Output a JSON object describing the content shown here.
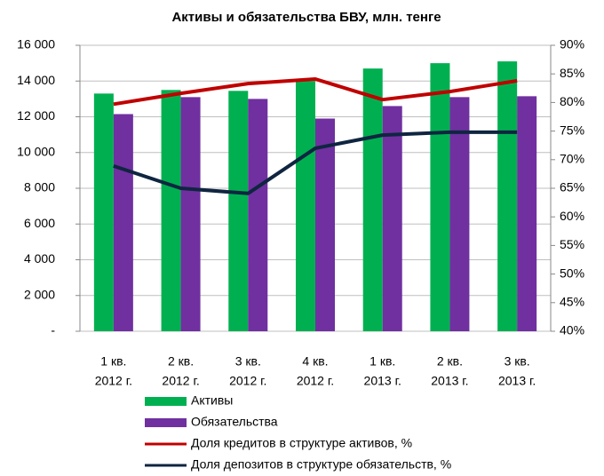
{
  "chart_data": {
    "type": "bar-line",
    "title": "Активы и обязательства БВУ, млн. тенге",
    "categories": [
      [
        "1 кв.",
        "2012 г."
      ],
      [
        "2 кв.",
        "2012 г."
      ],
      [
        "3 кв.",
        "2012 г."
      ],
      [
        "4 кв.",
        "2012 г."
      ],
      [
        "1 кв.",
        "2013 г."
      ],
      [
        "2 кв.",
        "2013 г."
      ],
      [
        "3 кв.",
        "2013 г."
      ]
    ],
    "series": [
      {
        "name": "Активы",
        "type": "bar",
        "color": "#00b050",
        "values": [
          13300,
          13500,
          13450,
          14000,
          14700,
          15000,
          15100
        ]
      },
      {
        "name": "Обязательства",
        "type": "bar",
        "color": "#7030a0",
        "values": [
          12150,
          13100,
          13000,
          11900,
          12600,
          13100,
          13150
        ]
      },
      {
        "name": "Доля кредитов в структуре активов, %",
        "type": "line",
        "axis": "y2",
        "color": "#c00000",
        "values": [
          79.7,
          81.6,
          83.3,
          84.1,
          80.5,
          81.9,
          83.8
        ]
      },
      {
        "name": "Доля депозитов в структуре обязательств, %",
        "type": "line",
        "axis": "y2",
        "color": "#0f2540",
        "values": [
          68.9,
          65.0,
          64.1,
          72.0,
          74.3,
          74.8,
          74.8
        ]
      }
    ],
    "ylim": [
      0,
      16000
    ],
    "yticks": [
      {
        "value": 0,
        "label": "-"
      },
      {
        "value": 2000,
        "label": "2 000"
      },
      {
        "value": 4000,
        "label": "4 000"
      },
      {
        "value": 6000,
        "label": "6 000"
      },
      {
        "value": 8000,
        "label": "8 000"
      },
      {
        "value": 10000,
        "label": "10 000"
      },
      {
        "value": 12000,
        "label": "12 000"
      },
      {
        "value": 14000,
        "label": "14 000"
      },
      {
        "value": 16000,
        "label": "16 000"
      }
    ],
    "y2lim": [
      40,
      90
    ],
    "y2ticks": [
      {
        "value": 40,
        "label": "40%"
      },
      {
        "value": 45,
        "label": "45%"
      },
      {
        "value": 50,
        "label": "50%"
      },
      {
        "value": 55,
        "label": "55%"
      },
      {
        "value": 60,
        "label": "60%"
      },
      {
        "value": 65,
        "label": "65%"
      },
      {
        "value": 70,
        "label": "70%"
      },
      {
        "value": 75,
        "label": "75%"
      },
      {
        "value": 80,
        "label": "80%"
      },
      {
        "value": 85,
        "label": "85%"
      },
      {
        "value": 90,
        "label": "90%"
      }
    ],
    "grid": true,
    "legend": "bottom"
  }
}
